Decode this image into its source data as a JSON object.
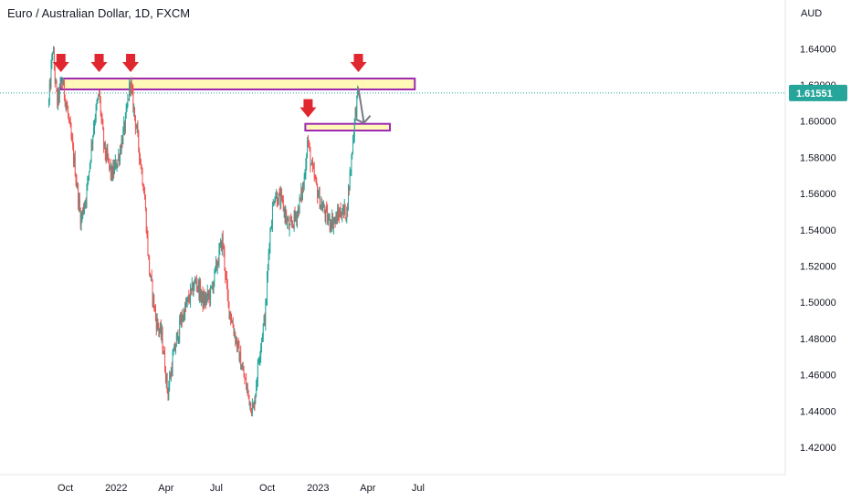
{
  "chart_data": {
    "type": "candlestick",
    "title": "Euro / Australian Dollar, 1D, FXCM",
    "y_unit": "AUD",
    "ylim": [
      1.412,
      1.652
    ],
    "y_ticks": [
      "1.64000",
      "1.62000",
      "1.60000",
      "1.58000",
      "1.56000",
      "1.54000",
      "1.52000",
      "1.50000",
      "1.48000",
      "1.46000",
      "1.44000",
      "1.42000"
    ],
    "x_ticks": [
      "Oct",
      "2022",
      "Apr",
      "Jul",
      "Oct",
      "2023",
      "Apr",
      "Jul"
    ],
    "last_price": "1.61551",
    "colors": {
      "up": "#26a69a",
      "down": "#ef5350",
      "zone_fill": "#fff59d",
      "zone_border": "#9c27b0",
      "arrow": "#e0262e",
      "price_label": "#26a69a"
    },
    "price_path": [
      [
        "2021-09-01",
        1.61
      ],
      [
        "2021-09-08",
        1.64
      ],
      [
        "2021-09-16",
        1.61
      ],
      [
        "2021-09-25",
        1.623
      ],
      [
        "2021-10-05",
        1.605
      ],
      [
        "2021-10-18",
        1.575
      ],
      [
        "2021-10-29",
        1.545
      ],
      [
        "2021-11-08",
        1.56
      ],
      [
        "2021-11-22",
        1.6
      ],
      [
        "2021-12-01",
        1.615
      ],
      [
        "2021-12-10",
        1.585
      ],
      [
        "2021-12-24",
        1.57
      ],
      [
        "2022-01-05",
        1.58
      ],
      [
        "2022-01-18",
        1.6
      ],
      [
        "2022-01-26",
        1.622
      ],
      [
        "2022-02-07",
        1.595
      ],
      [
        "2022-02-21",
        1.56
      ],
      [
        "2022-03-01",
        1.52
      ],
      [
        "2022-03-14",
        1.49
      ],
      [
        "2022-03-25",
        1.48
      ],
      [
        "2022-04-04",
        1.45
      ],
      [
        "2022-04-14",
        1.47
      ],
      [
        "2022-04-28",
        1.49
      ],
      [
        "2022-05-10",
        1.5
      ],
      [
        "2022-05-25",
        1.512
      ],
      [
        "2022-06-08",
        1.5
      ],
      [
        "2022-06-21",
        1.505
      ],
      [
        "2022-07-05",
        1.525
      ],
      [
        "2022-07-12",
        1.535
      ],
      [
        "2022-07-22",
        1.5
      ],
      [
        "2022-08-05",
        1.48
      ],
      [
        "2022-08-19",
        1.46
      ],
      [
        "2022-08-31",
        1.445
      ],
      [
        "2022-09-06",
        1.44
      ],
      [
        "2022-09-16",
        1.47
      ],
      [
        "2022-09-28",
        1.495
      ],
      [
        "2022-10-05",
        1.535
      ],
      [
        "2022-10-14",
        1.56
      ],
      [
        "2022-10-28",
        1.555
      ],
      [
        "2022-11-10",
        1.54
      ],
      [
        "2022-11-25",
        1.55
      ],
      [
        "2022-12-06",
        1.565
      ],
      [
        "2022-12-13",
        1.59
      ],
      [
        "2022-12-20",
        1.575
      ],
      [
        "2023-01-05",
        1.555
      ],
      [
        "2023-01-20",
        1.545
      ],
      [
        "2023-02-01",
        1.545
      ],
      [
        "2023-02-10",
        1.55
      ],
      [
        "2023-02-22",
        1.55
      ],
      [
        "2023-03-01",
        1.575
      ],
      [
        "2023-03-08",
        1.6
      ],
      [
        "2023-03-15",
        1.618
      ]
    ],
    "resistance_touches": [
      "2021-09-23",
      "2021-12-01",
      "2022-01-27",
      "2023-03-15"
    ],
    "support_touch": "2022-12-14",
    "zones": [
      {
        "from": "2021-09-23",
        "to": "2023-06-25",
        "low": 1.6175,
        "high": 1.6235
      },
      {
        "from": "2022-12-09",
        "to": "2023-05-11",
        "low": 1.5948,
        "high": 1.5985
      }
    ],
    "projection": [
      [
        "2023-03-15",
        1.618
      ],
      [
        "2023-03-25",
        1.599
      ]
    ],
    "grid": false,
    "legend": "none"
  }
}
